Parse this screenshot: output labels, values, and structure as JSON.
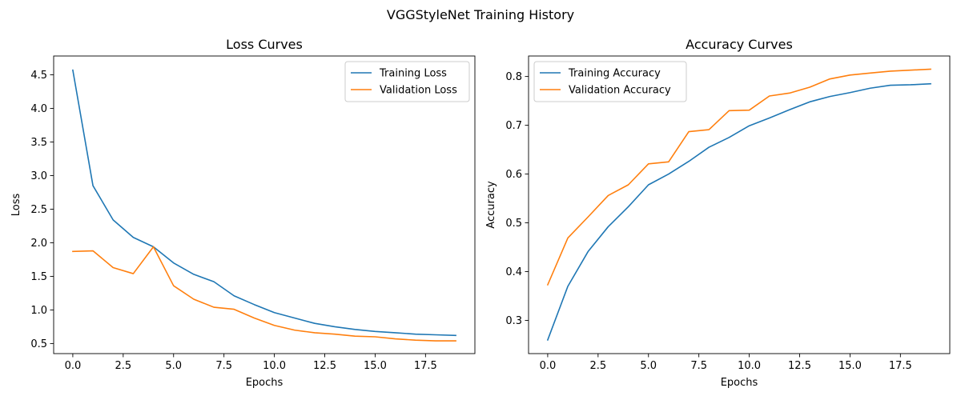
{
  "figure_title": "VGGStyleNet Training History",
  "colors": {
    "training": "#1f77b4",
    "validation": "#ff7f0e"
  },
  "chart_data": [
    {
      "type": "line",
      "title": "Loss Curves",
      "xlabel": "Epochs",
      "ylabel": "Loss",
      "xlim": [
        -0.95,
        19.95
      ],
      "ylim": [
        0.35,
        4.78
      ],
      "xticks": [
        0.0,
        2.5,
        5.0,
        7.5,
        10.0,
        12.5,
        15.0,
        17.5
      ],
      "xtick_labels": [
        "0.0",
        "2.5",
        "5.0",
        "7.5",
        "10.0",
        "12.5",
        "15.0",
        "17.5"
      ],
      "yticks": [
        0.5,
        1.0,
        1.5,
        2.0,
        2.5,
        3.0,
        3.5,
        4.0,
        4.5
      ],
      "ytick_labels": [
        "0.5",
        "1.0",
        "1.5",
        "2.0",
        "2.5",
        "3.0",
        "3.5",
        "4.0",
        "4.5"
      ],
      "grid": false,
      "legend_position": "top-right",
      "x": [
        0,
        1,
        2,
        3,
        4,
        5,
        6,
        7,
        8,
        9,
        10,
        11,
        12,
        13,
        14,
        15,
        16,
        17,
        18,
        19
      ],
      "series": [
        {
          "name": "Training Loss",
          "color": "#1f77b4",
          "values": [
            4.57,
            2.85,
            2.34,
            2.08,
            1.94,
            1.7,
            1.53,
            1.42,
            1.21,
            1.08,
            0.96,
            0.88,
            0.8,
            0.75,
            0.71,
            0.68,
            0.66,
            0.64,
            0.63,
            0.62
          ]
        },
        {
          "name": "Validation Loss",
          "color": "#ff7f0e",
          "values": [
            1.87,
            1.88,
            1.63,
            1.54,
            1.94,
            1.36,
            1.16,
            1.04,
            1.01,
            0.88,
            0.77,
            0.7,
            0.66,
            0.64,
            0.61,
            0.6,
            0.57,
            0.55,
            0.54,
            0.54
          ]
        }
      ]
    },
    {
      "type": "line",
      "title": "Accuracy Curves",
      "xlabel": "Epochs",
      "ylabel": "Accuracy",
      "xlim": [
        -0.95,
        19.95
      ],
      "ylim": [
        0.232,
        0.842
      ],
      "xticks": [
        0.0,
        2.5,
        5.0,
        7.5,
        10.0,
        12.5,
        15.0,
        17.5
      ],
      "xtick_labels": [
        "0.0",
        "2.5",
        "5.0",
        "7.5",
        "10.0",
        "12.5",
        "15.0",
        "17.5"
      ],
      "yticks": [
        0.3,
        0.4,
        0.5,
        0.6,
        0.7,
        0.8
      ],
      "ytick_labels": [
        "0.3",
        "0.4",
        "0.5",
        "0.6",
        "0.7",
        "0.8"
      ],
      "grid": false,
      "legend_position": "top-left",
      "x": [
        0,
        1,
        2,
        3,
        4,
        5,
        6,
        7,
        8,
        9,
        10,
        11,
        12,
        13,
        14,
        15,
        16,
        17,
        18,
        19
      ],
      "series": [
        {
          "name": "Training Accuracy",
          "color": "#1f77b4",
          "values": [
            0.26,
            0.37,
            0.441,
            0.492,
            0.533,
            0.578,
            0.6,
            0.626,
            0.655,
            0.675,
            0.699,
            0.715,
            0.732,
            0.748,
            0.759,
            0.767,
            0.776,
            0.782,
            0.783,
            0.785
          ]
        },
        {
          "name": "Validation Accuracy",
          "color": "#ff7f0e",
          "values": [
            0.373,
            0.469,
            0.512,
            0.556,
            0.578,
            0.621,
            0.625,
            0.687,
            0.691,
            0.73,
            0.731,
            0.76,
            0.766,
            0.778,
            0.795,
            0.803,
            0.807,
            0.811,
            0.813,
            0.815
          ]
        }
      ]
    }
  ]
}
